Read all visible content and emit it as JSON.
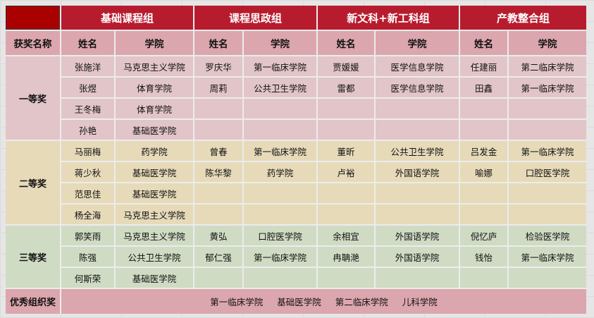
{
  "groups": [
    "基础课程组",
    "课程思政组",
    "新文科+新工科组",
    "产教整合组"
  ],
  "subheader": {
    "award_label": "获奖名称",
    "name_label": "姓名",
    "college_label": "学院"
  },
  "prizes": [
    {
      "label": "一等奖",
      "rows": [
        [
          "张施洋",
          "马克思主义学院",
          "罗庆华",
          "第一临床学院",
          "贾媛媛",
          "医学信息学院",
          "任建丽",
          "第二临床学院"
        ],
        [
          "张煜",
          "体育学院",
          "周莉",
          "公共卫生学院",
          "雷都",
          "医学信息学院",
          "田鑫",
          "第一临床学院"
        ],
        [
          "王冬梅",
          "体育学院",
          "",
          "",
          "",
          "",
          "",
          ""
        ],
        [
          "孙艳",
          "基础医学院",
          "",
          "",
          "",
          "",
          "",
          ""
        ]
      ]
    },
    {
      "label": "二等奖",
      "rows": [
        [
          "马丽梅",
          "药学院",
          "曾春",
          "第一临床学院",
          "董昕",
          "公共卫生学院",
          "吕发金",
          "第一临床学院"
        ],
        [
          "蒋少秋",
          "基础医学院",
          "陈华黎",
          "药学院",
          "卢裕",
          "外国语学院",
          "喻娜",
          "口腔医学院"
        ],
        [
          "范思佳",
          "基础医学院",
          "",
          "",
          "",
          "",
          "",
          ""
        ],
        [
          "杨全海",
          "马克思主义学院",
          "",
          "",
          "",
          "",
          "",
          ""
        ]
      ]
    },
    {
      "label": "三等奖",
      "rows": [
        [
          "郭笑雨",
          "马克思主义学院",
          "黄弘",
          "口腔医学院",
          "余相宜",
          "外国语学院",
          "倪忆庐",
          "检验医学院"
        ],
        [
          "陈强",
          "公共卫生学院",
          "郁仁强",
          "第一临床学院",
          "冉聃滟",
          "外国语学院",
          "钱怡",
          "第一临床学院"
        ],
        [
          "何斯荣",
          "基础医学院",
          "",
          "",
          "",
          "",
          "",
          ""
        ]
      ]
    }
  ],
  "organization_award": {
    "label": "优秀组织奖",
    "colleges": [
      "第一临床学院",
      "基础医学院",
      "第二临床学院",
      "儿科学院"
    ]
  },
  "colors": {
    "header": "#b71c2e",
    "first": "#e2c5c8",
    "second": "#e6dab9",
    "third": "#d0dbc4",
    "subheader": "#dca6ae"
  }
}
